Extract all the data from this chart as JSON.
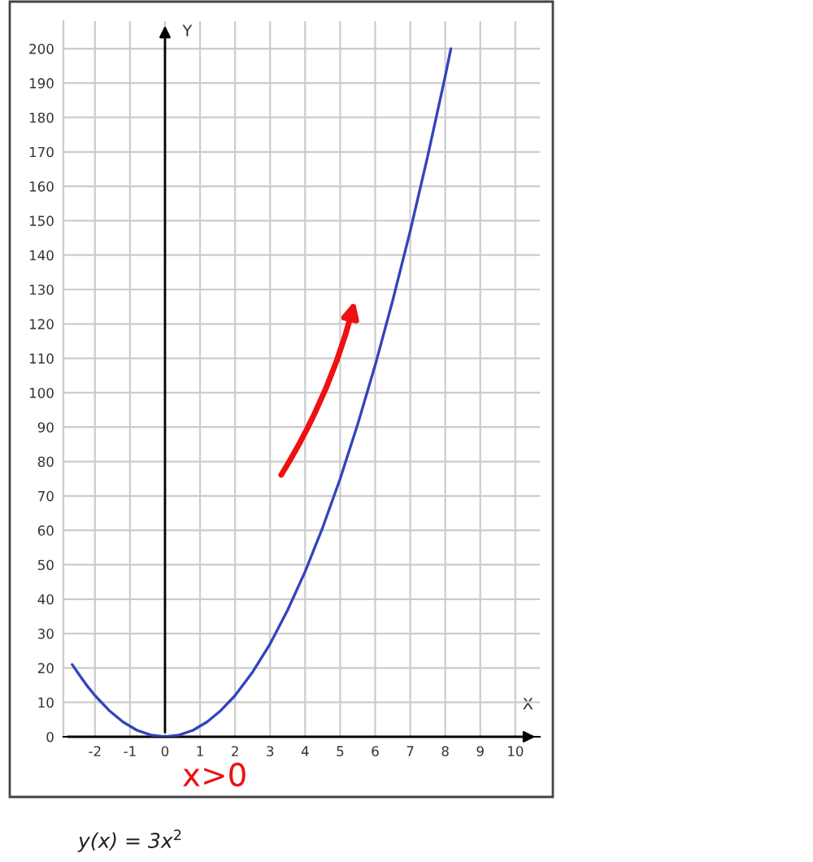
{
  "chart_data": {
    "type": "line",
    "xlabel": "X",
    "ylabel": "Y",
    "series": [
      {
        "color": "#3344bb",
        "x": [
          -2.65,
          -2.4,
          -2.2,
          -2,
          -1.6,
          -1.2,
          -0.8,
          -0.4,
          0,
          0.4,
          0.8,
          1.2,
          1.6,
          2,
          2.5,
          3,
          3.5,
          4,
          4.5,
          5,
          5.5,
          6,
          6.5,
          7,
          7.5,
          8,
          8.16
        ],
        "values": [
          21,
          17.3,
          14.5,
          12,
          7.7,
          4.3,
          1.9,
          0.5,
          0,
          0.5,
          1.9,
          4.3,
          7.7,
          12,
          18.8,
          27,
          36.8,
          48,
          60.8,
          75,
          90.8,
          108,
          126.8,
          147,
          168.8,
          192,
          200
        ]
      }
    ],
    "xlim": [
      -2.9,
      10.7
    ],
    "ylim": [
      0,
      208
    ],
    "xticks": [
      -2,
      -1,
      0,
      1,
      2,
      3,
      4,
      5,
      6,
      7,
      8,
      9,
      10
    ],
    "yticks": [
      0,
      10,
      20,
      30,
      40,
      50,
      60,
      70,
      80,
      90,
      100,
      110,
      120,
      130,
      140,
      150,
      160,
      170,
      180,
      190,
      200
    ],
    "grid": true,
    "marker": "none",
    "line_style": "solid",
    "annotations": [
      "x>0",
      "y(x) = 3x$^{2}$"
    ]
  }
}
